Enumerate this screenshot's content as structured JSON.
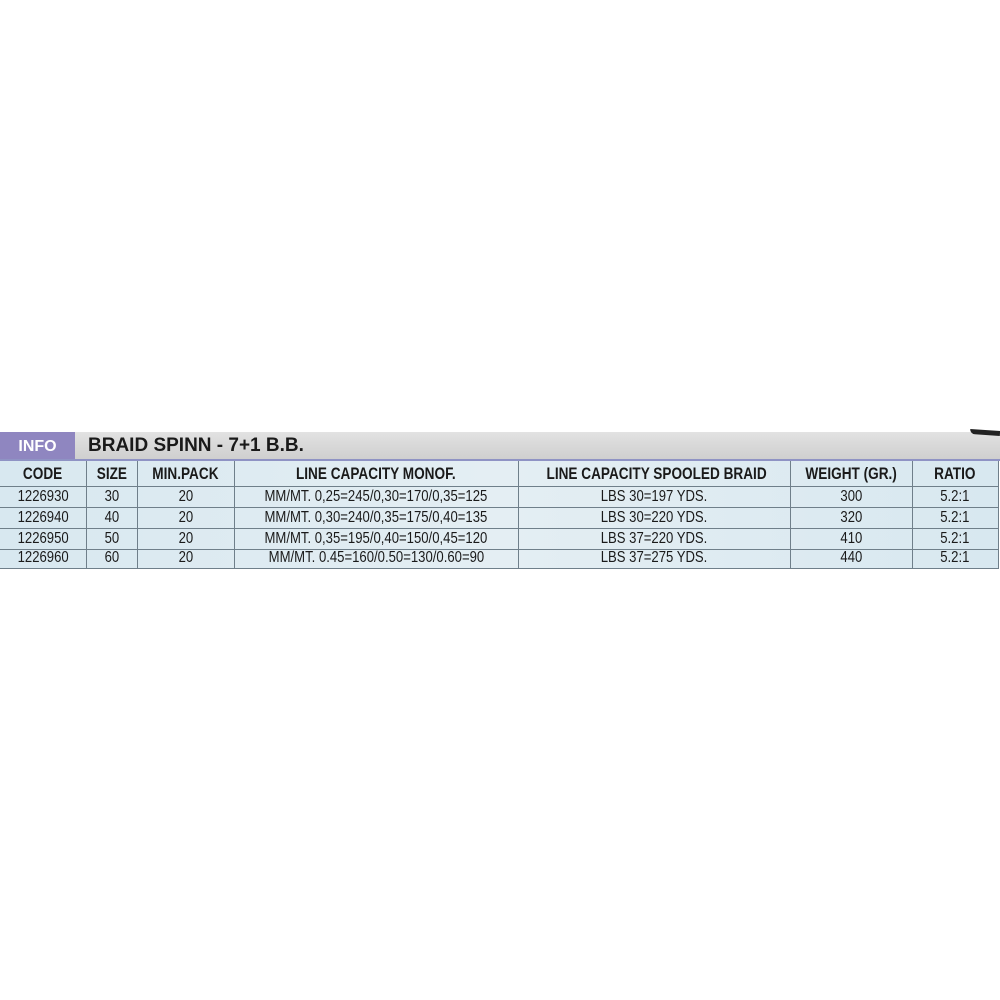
{
  "header": {
    "badge": "INFO",
    "title": "BRAID SPINN - 7+1 B.B."
  },
  "table": {
    "columns": [
      "CODE",
      "SIZE",
      "MIN.PACK",
      "LINE CAPACITY MONOF.",
      "LINE CAPACITY SPOOLED BRAID",
      "WEIGHT (GR.)",
      "RATIO"
    ],
    "rows": [
      [
        "1226930",
        "30",
        "20",
        "MM/MT. 0,25=245/0,30=170/0,35=125",
        "LBS 30=197 YDS.",
        "300",
        "5.2:1"
      ],
      [
        "1226940",
        "40",
        "20",
        "MM/MT. 0,30=240/0,35=175/0,40=135",
        "LBS 30=220 YDS.",
        "320",
        "5.2:1"
      ],
      [
        "1226950",
        "50",
        "20",
        "MM/MT. 0,35=195/0,40=150/0,45=120",
        "LBS 37=220 YDS.",
        "410",
        "5.2:1"
      ],
      [
        "1226960",
        "60",
        "20",
        "MM/MT. 0.45=160/0.50=130/0.60=90",
        "LBS 37=275 YDS.",
        "440",
        "5.2:1"
      ]
    ]
  },
  "colors": {
    "badge": "#8f86c0",
    "table_bg": "#d8e8f0",
    "title_bar": "#d6d6d6"
  }
}
